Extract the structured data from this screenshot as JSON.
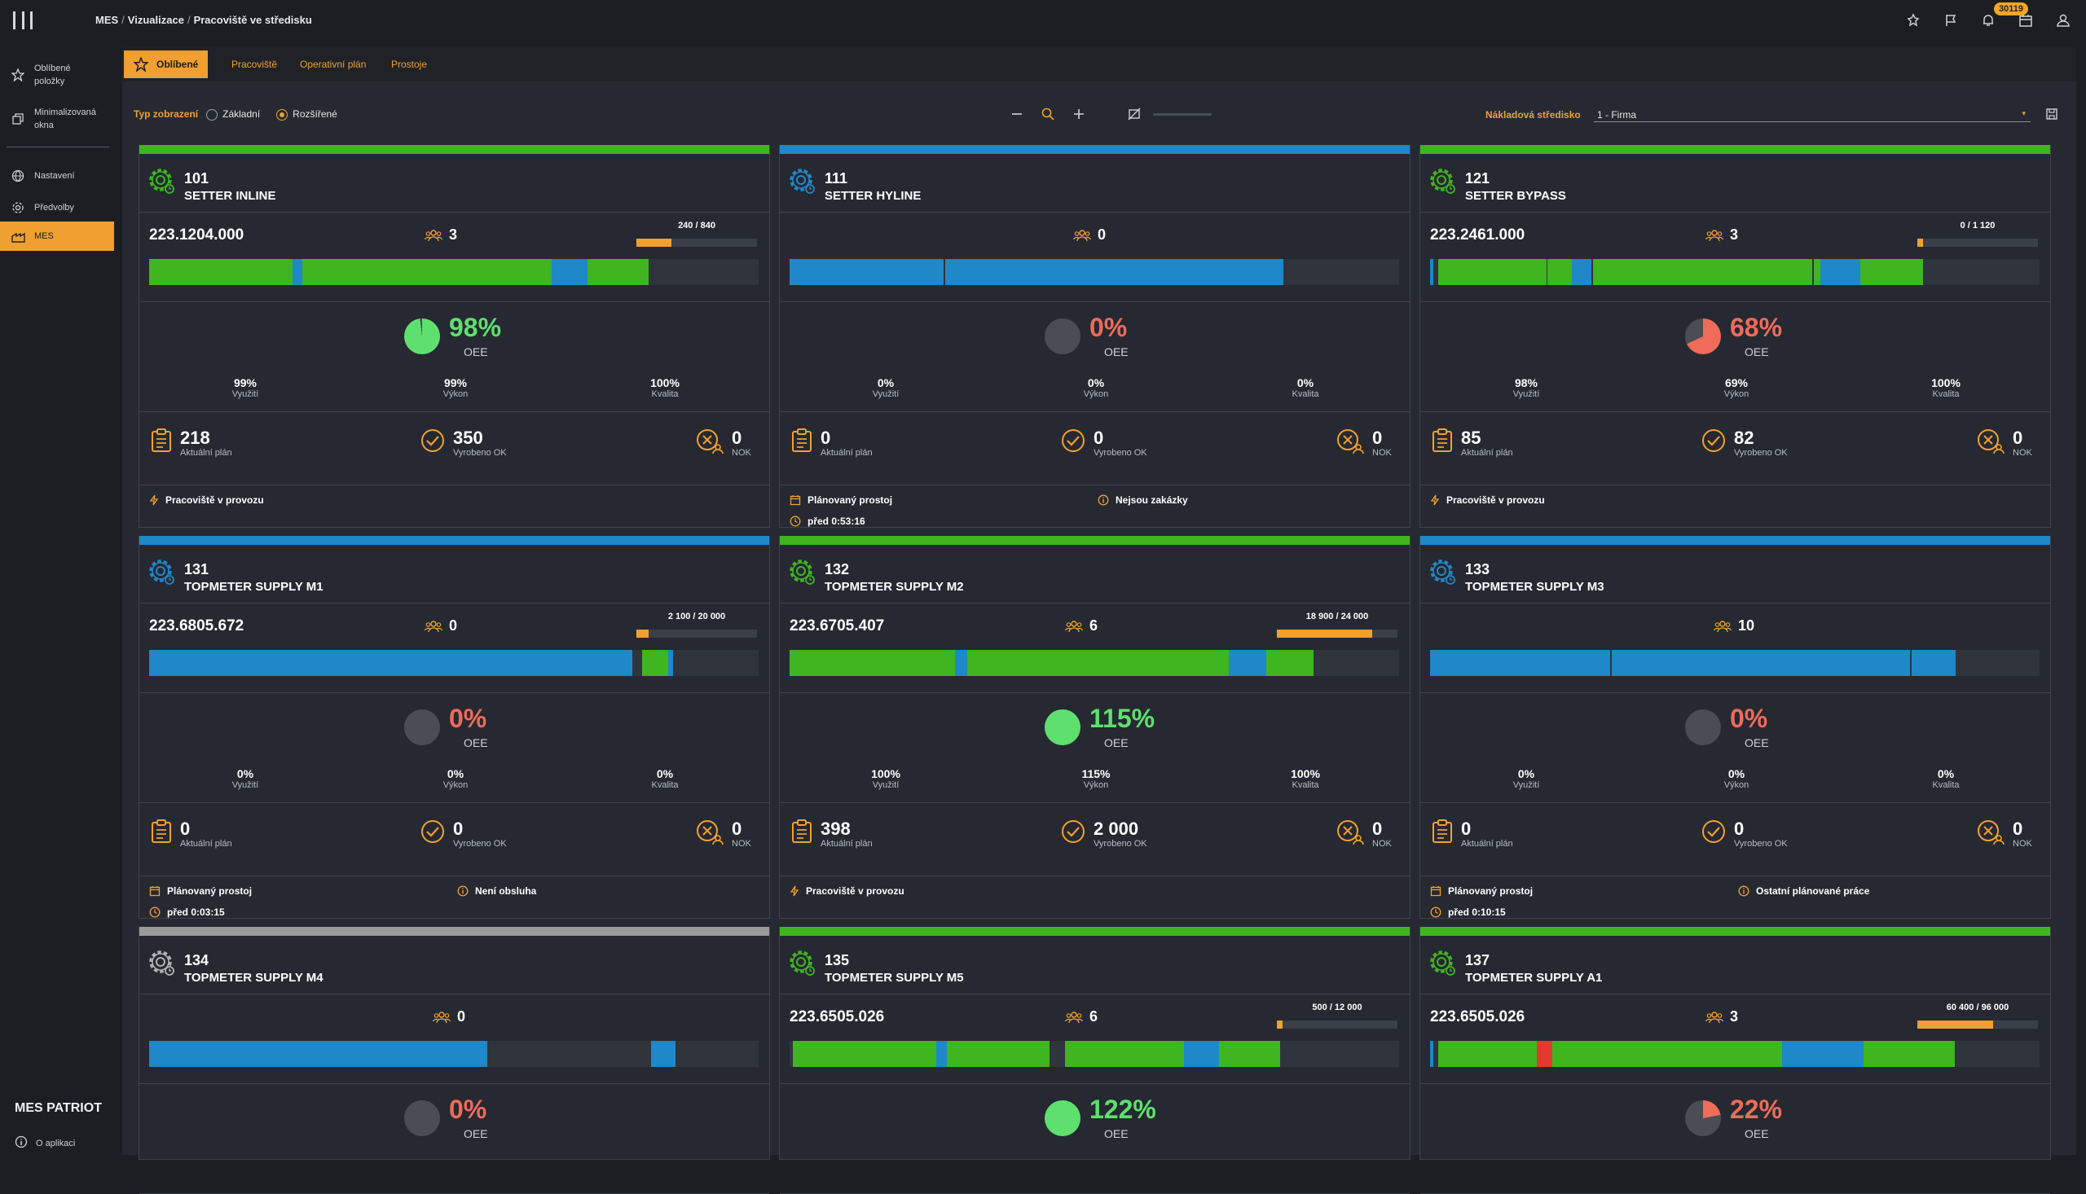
{
  "breadcrumb": [
    "MES",
    "Vizualizace",
    "Pracoviště ve středisku"
  ],
  "top_icons": [
    "pin-icon",
    "flag-icon",
    "bell-icon",
    "calendar-icon",
    "user-icon"
  ],
  "notification_count": "30119",
  "sidebar": {
    "items": [
      {
        "label": "Oblíbené položky",
        "icon": "star-icon"
      },
      {
        "label": "Minimalizovaná okna",
        "icon": "windows-icon"
      },
      {
        "label": "Nastavení",
        "icon": "globe-icon"
      },
      {
        "label": "Předvolby",
        "icon": "gear-icon"
      },
      {
        "label": "MES",
        "icon": "factory-icon"
      }
    ],
    "brand": "MES PATRIOT",
    "about": "O aplikaci"
  },
  "tabs": [
    "Oblíbené",
    "Pracoviště",
    "Operativní plán",
    "Prostoje"
  ],
  "toolbar": {
    "view_type_label": "Typ zobrazení",
    "option_basic": "Základní",
    "option_extended": "Rozšířené",
    "cost_center_label": "Nákladová středisko",
    "cost_center_value": "1 - Firma"
  },
  "colors": {
    "green": "#3fb520",
    "blue": "#1e88c9",
    "grey": "#9a9a9a",
    "orange": "#f0a030",
    "red": "#ef6b5a",
    "good": "#5ee06e"
  },
  "labels": {
    "oee": "OEE",
    "utilization": "Využití",
    "performance": "Výkon",
    "quality": "Kvalita",
    "plan": "Aktuální plán",
    "ok": "Vyrobeno OK",
    "nok": "NOK"
  },
  "cards": [
    {
      "id": "101",
      "name": "SETTER INLINE",
      "status": "green",
      "code": "223.1204.000",
      "people": "3",
      "progress_label": "240 / 840",
      "progress": 0.29,
      "segments": [
        [
          "g",
          0,
          0.235
        ],
        [
          "b",
          0.235,
          0.016
        ],
        [
          "g",
          0.251,
          0.41
        ],
        [
          "b",
          0.661,
          0.058
        ],
        [
          "g",
          0.719,
          0.1
        ]
      ],
      "oee": "98%",
      "oee_frac": 0.98,
      "oee_color": "good",
      "util": "99%",
      "perf": "99%",
      "qual": "100%",
      "plan": "218",
      "ok": "350",
      "nok": "0",
      "status1": "Pracoviště v provozu",
      "status1_icon": "bolt-icon",
      "status2": "",
      "time": ""
    },
    {
      "id": "111",
      "name": "SETTER HYLINE",
      "status": "blue",
      "code": "",
      "people": "0",
      "progress_label": "",
      "progress": 0,
      "segments": [
        [
          "b",
          0,
          0.253
        ],
        [
          "b",
          0.255,
          0.555
        ]
      ],
      "oee": "0%",
      "oee_frac": 0,
      "oee_color": "red",
      "util": "0%",
      "perf": "0%",
      "qual": "0%",
      "plan": "0",
      "ok": "0",
      "nok": "0",
      "status1": "Plánovaný prostoj",
      "status1_icon": "calendar-icon",
      "status2": "Nejsou zakázky",
      "time": "před 0:53:16"
    },
    {
      "id": "121",
      "name": "SETTER BYPASS",
      "status": "green",
      "code": "223.2461.000",
      "people": "3",
      "progress_label": "0 / 1 120",
      "progress": 0,
      "segments": [
        [
          "b",
          0,
          0.006
        ],
        [
          "g",
          0.013,
          0.178
        ],
        [
          "g",
          0.193,
          0.04
        ],
        [
          "b",
          0.233,
          0.032
        ],
        [
          "g",
          0.267,
          0.36
        ],
        [
          "g",
          0.63,
          0.01
        ],
        [
          "b",
          0.64,
          0.066
        ],
        [
          "g",
          0.706,
          0.103
        ]
      ],
      "oee": "68%",
      "oee_frac": 0.68,
      "oee_color": "red",
      "util": "98%",
      "perf": "69%",
      "qual": "100%",
      "plan": "85",
      "ok": "82",
      "nok": "0",
      "status1": "Pracoviště v provozu",
      "status1_icon": "bolt-icon",
      "status2": "",
      "time": ""
    },
    {
      "id": "131",
      "name": "TOPMETER SUPPLY M1",
      "status": "blue",
      "code": "223.6805.672",
      "people": "0",
      "progress_label": "2 100 / 20 000",
      "progress": 0.1,
      "segments": [
        [
          "b",
          0,
          0.793
        ],
        [
          "g",
          0.809,
          0.043
        ],
        [
          "b",
          0.852,
          0.008
        ]
      ],
      "oee": "0%",
      "oee_frac": 0,
      "oee_color": "red",
      "util": "0%",
      "perf": "0%",
      "qual": "0%",
      "plan": "0",
      "ok": "0",
      "nok": "0",
      "status1": "Plánovaný prostoj",
      "status1_icon": "calendar-icon",
      "status2": "Není obsluha",
      "time": "před 0:03:15"
    },
    {
      "id": "132",
      "name": "TOPMETER SUPPLY M2",
      "status": "green",
      "code": "223.6705.407",
      "people": "6",
      "progress_label": "18 900 / 24 000",
      "progress": 0.79,
      "segments": [
        [
          "g",
          0,
          0.272
        ],
        [
          "b",
          0.272,
          0.02
        ],
        [
          "g",
          0.292,
          0.428
        ],
        [
          "b",
          0.72,
          0.062
        ],
        [
          "g",
          0.782,
          0.078
        ]
      ],
      "oee": "115%",
      "oee_frac": 1,
      "oee_color": "good",
      "util": "100%",
      "perf": "115%",
      "qual": "100%",
      "plan": "398",
      "ok": "2 000",
      "nok": "0",
      "status1": "Pracoviště v provozu",
      "status1_icon": "bolt-icon",
      "status2": "",
      "time": ""
    },
    {
      "id": "133",
      "name": "TOPMETER SUPPLY M3",
      "status": "blue",
      "code": "",
      "people": "10",
      "progress_label": "",
      "progress": 0,
      "segments": [
        [
          "b",
          0,
          0.295
        ],
        [
          "b",
          0.298,
          0.49
        ],
        [
          "b",
          0.79,
          0.072
        ]
      ],
      "oee": "0%",
      "oee_frac": 0,
      "oee_color": "red",
      "util": "0%",
      "perf": "0%",
      "qual": "0%",
      "plan": "0",
      "ok": "0",
      "nok": "0",
      "status1": "Plánovaný prostoj",
      "status1_icon": "calendar-icon",
      "status2": "Ostatní plánované práce",
      "time": "před 0:10:15"
    },
    {
      "id": "134",
      "name": "TOPMETER SUPPLY M4",
      "status": "grey",
      "code": "",
      "people": "0",
      "progress_label": "",
      "progress": 0,
      "segments": [
        [
          "b",
          0,
          0.555
        ],
        [
          "b",
          0.823,
          0.04
        ]
      ],
      "oee": "0%",
      "oee_frac": 0,
      "oee_color": "red"
    },
    {
      "id": "135",
      "name": "TOPMETER SUPPLY M5",
      "status": "green",
      "code": "223.6505.026",
      "people": "6",
      "progress_label": "500 / 12 000",
      "progress": 0.04,
      "segments": [
        [
          "g",
          0.005,
          0.235
        ],
        [
          "b",
          0.24,
          0.018
        ],
        [
          "g",
          0.258,
          0.168
        ],
        [
          "g",
          0.452,
          0.195
        ],
        [
          "b",
          0.647,
          0.058
        ],
        [
          "g",
          0.705,
          0.1
        ]
      ],
      "oee": "122%",
      "oee_frac": 1,
      "oee_color": "good"
    },
    {
      "id": "137",
      "name": "TOPMETER SUPPLY A1",
      "status": "green",
      "code": "223.6505.026",
      "people": "3",
      "progress_label": "60 400 / 96 000",
      "progress": 0.63,
      "segments": [
        [
          "b",
          0,
          0.006
        ],
        [
          "g",
          0.013,
          0.162
        ],
        [
          "r",
          0.175,
          0.025
        ],
        [
          "g",
          0.2,
          0.378
        ],
        [
          "b",
          0.578,
          0.133
        ],
        [
          "g",
          0.711,
          0.15
        ]
      ],
      "oee": "22%",
      "oee_frac": 0.22,
      "oee_color": "red"
    }
  ]
}
